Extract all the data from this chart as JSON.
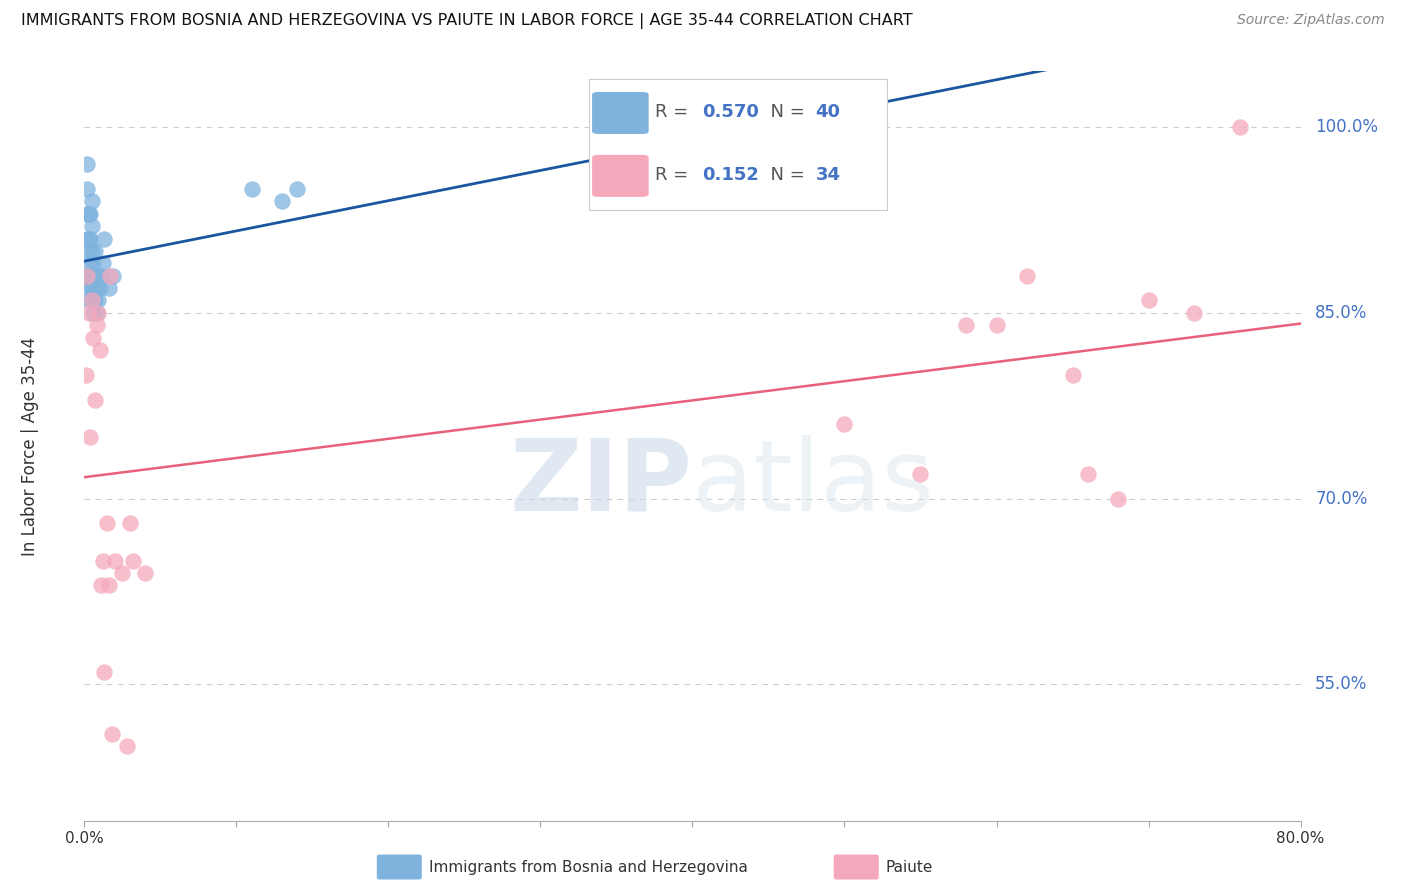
{
  "title": "IMMIGRANTS FROM BOSNIA AND HERZEGOVINA VS PAIUTE IN LABOR FORCE | AGE 35-44 CORRELATION CHART",
  "source": "Source: ZipAtlas.com",
  "ylabel": "In Labor Force | Age 35-44",
  "blue_label": "Immigrants from Bosnia and Herzegovina",
  "pink_label": "Paiute",
  "blue_R": 0.57,
  "blue_N": 40,
  "pink_R": 0.152,
  "pink_N": 34,
  "xlim": [
    0.0,
    0.8
  ],
  "ylim": [
    0.44,
    1.045
  ],
  "right_yticks": [
    0.55,
    0.7,
    0.85,
    1.0
  ],
  "right_yticklabels": [
    "55.0%",
    "70.0%",
    "85.0%",
    "100.0%"
  ],
  "watermark_zip": "ZIP",
  "watermark_atlas": "atlas",
  "blue_color": "#7fb3de",
  "pink_color": "#f5a8bc",
  "blue_line_color": "#1a56a0",
  "pink_line_color": "#e8607a",
  "blue_x": [
    0.001,
    0.002,
    0.002,
    0.002,
    0.002,
    0.003,
    0.003,
    0.003,
    0.003,
    0.003,
    0.004,
    0.004,
    0.004,
    0.004,
    0.005,
    0.005,
    0.005,
    0.005,
    0.005,
    0.005,
    0.006,
    0.006,
    0.006,
    0.007,
    0.007,
    0.007,
    0.008,
    0.008,
    0.009,
    0.009,
    0.01,
    0.011,
    0.012,
    0.013,
    0.016,
    0.019,
    0.11,
    0.13,
    0.14,
    0.5
  ],
  "blue_y": [
    0.88,
    0.91,
    0.93,
    0.95,
    0.97,
    0.86,
    0.88,
    0.9,
    0.91,
    0.93,
    0.87,
    0.89,
    0.91,
    0.93,
    0.86,
    0.87,
    0.88,
    0.9,
    0.92,
    0.94,
    0.85,
    0.87,
    0.89,
    0.86,
    0.88,
    0.9,
    0.85,
    0.87,
    0.86,
    0.88,
    0.87,
    0.88,
    0.89,
    0.91,
    0.87,
    0.88,
    0.95,
    0.94,
    0.95,
    1.0
  ],
  "pink_x": [
    0.001,
    0.002,
    0.003,
    0.004,
    0.005,
    0.006,
    0.007,
    0.008,
    0.009,
    0.01,
    0.011,
    0.012,
    0.013,
    0.015,
    0.016,
    0.017,
    0.018,
    0.02,
    0.025,
    0.028,
    0.03,
    0.032,
    0.04,
    0.5,
    0.55,
    0.58,
    0.6,
    0.62,
    0.65,
    0.66,
    0.68,
    0.7,
    0.73,
    0.76
  ],
  "pink_y": [
    0.8,
    0.88,
    0.85,
    0.75,
    0.86,
    0.83,
    0.78,
    0.84,
    0.85,
    0.82,
    0.63,
    0.65,
    0.56,
    0.68,
    0.63,
    0.88,
    0.51,
    0.65,
    0.64,
    0.5,
    0.68,
    0.65,
    0.64,
    0.76,
    0.72,
    0.84,
    0.84,
    0.88,
    0.8,
    0.72,
    0.7,
    0.86,
    0.85,
    1.0
  ]
}
